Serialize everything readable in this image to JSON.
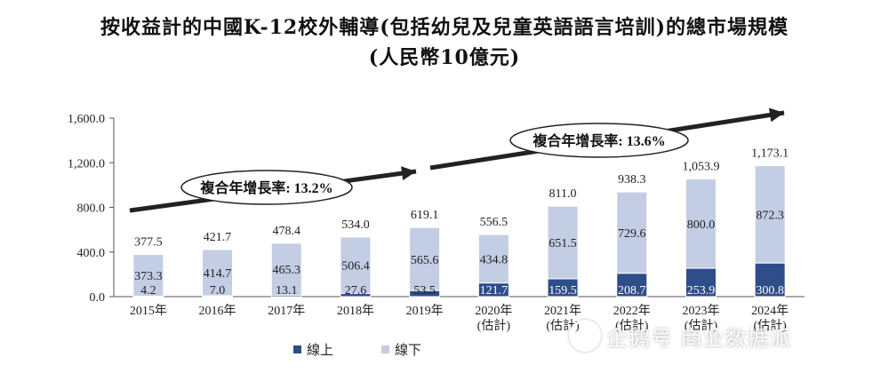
{
  "title": {
    "line1": "按收益計的中國K-12校外輔導(包括幼兒及兒童英語語言培訓)的總市場規模",
    "line2": "(人民幣10億元)"
  },
  "colors": {
    "online": "#2e4d8a",
    "offline": "#c3cde3",
    "arrow": "#222222"
  },
  "watermark": {
    "text": "企鹅号 商业数据派"
  },
  "chart_data": {
    "type": "bar",
    "stacked": true,
    "categories": [
      "2015年",
      "2016年",
      "2017年",
      "2018年",
      "2019年",
      "2020年\n(估計)",
      "2021年\n(估計)",
      "2022年\n(估計)",
      "2023年\n(估計)",
      "2024年\n(估計)"
    ],
    "series": [
      {
        "name": "線上",
        "values": [
          4.2,
          7.0,
          13.1,
          27.6,
          53.5,
          121.7,
          159.5,
          208.7,
          253.9,
          300.8
        ]
      },
      {
        "name": "線下",
        "values": [
          373.3,
          414.7,
          465.3,
          506.4,
          565.6,
          434.8,
          651.5,
          729.6,
          800.0,
          872.3
        ]
      }
    ],
    "totals": [
      377.5,
      421.7,
      478.4,
      534.0,
      619.1,
      556.5,
      811.0,
      938.3,
      1053.9,
      1173.1
    ],
    "yticks": [
      "0.0",
      "400.0",
      "800.0",
      "1,200.0",
      "1,600.0"
    ],
    "ylim": [
      0,
      1600
    ],
    "legend_position": "bottom",
    "annotations": [
      {
        "label": "複合年增長率: 13.2%",
        "from_category": 0,
        "to_category": 4
      },
      {
        "label": "複合年增長率: 13.6%",
        "from_category": 4,
        "to_category": 9
      }
    ]
  }
}
